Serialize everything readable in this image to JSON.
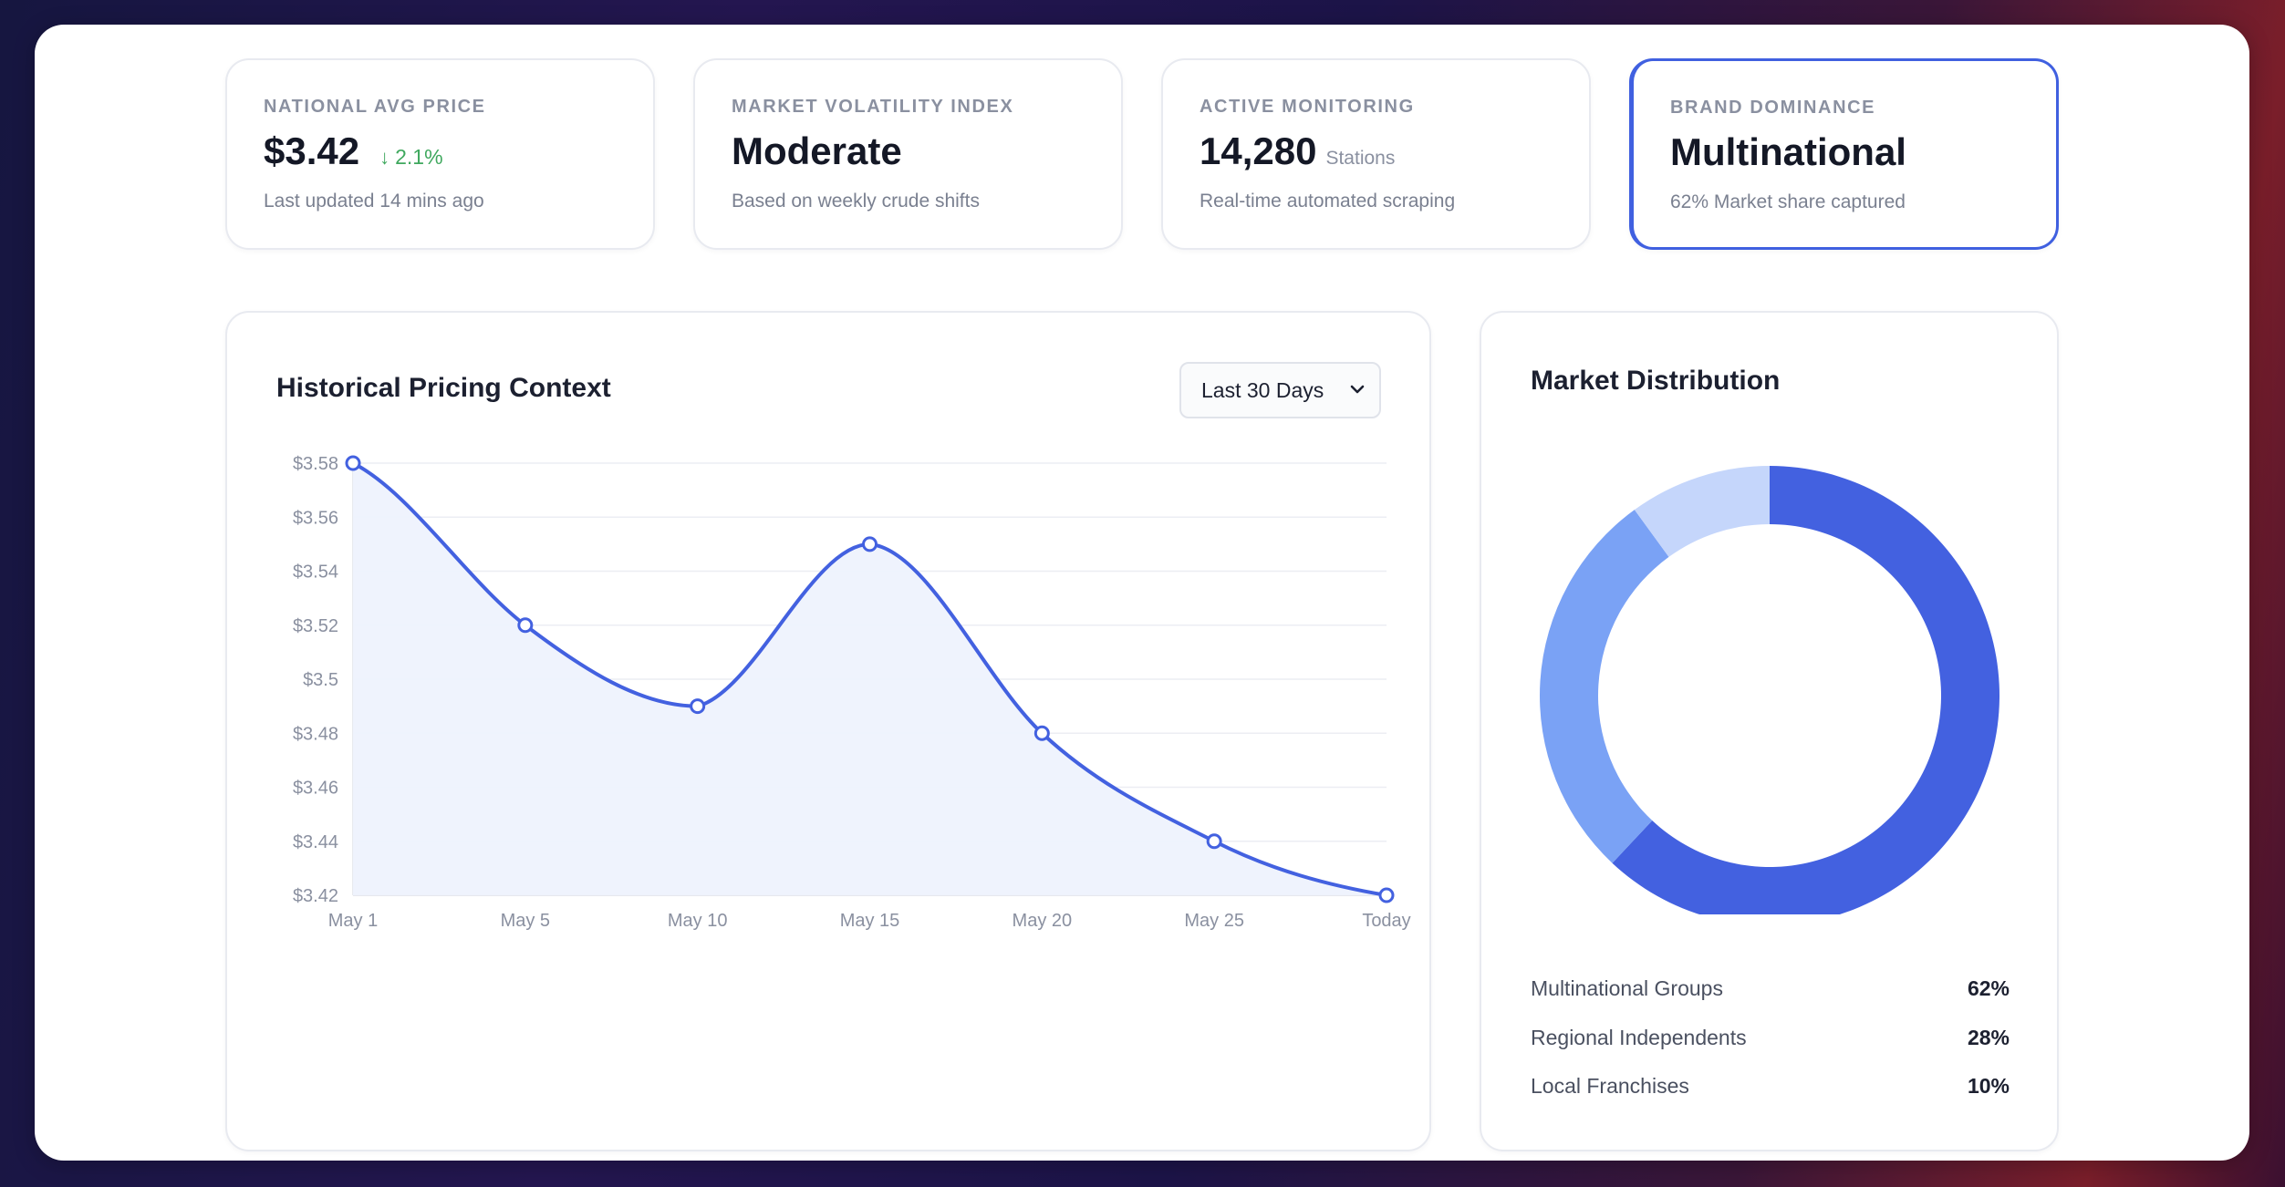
{
  "stats": [
    {
      "label": "NATIONAL AVG PRICE",
      "value": "$3.42",
      "change": "2.1%",
      "change_icon": "arrow-down-icon",
      "sub": "Last updated 14 mins ago"
    },
    {
      "label": "MARKET VOLATILITY INDEX",
      "value": "Moderate",
      "sub": "Based on weekly crude shifts"
    },
    {
      "label": "ACTIVE MONITORING",
      "value": "14,280",
      "unit": "Stations",
      "sub": "Real-time automated scraping"
    },
    {
      "label": "BRAND DOMINANCE",
      "value": "Multinational",
      "sub": "62% Market share captured"
    }
  ],
  "history": {
    "title": "Historical Pricing Context",
    "range_select": {
      "selected": "Last 30 Days"
    }
  },
  "distribution": {
    "title": "Market Distribution",
    "legend": [
      {
        "label": "Multinational Groups",
        "value": "62%"
      },
      {
        "label": "Regional Independents",
        "value": "28%"
      },
      {
        "label": "Local Franchises",
        "value": "10%"
      }
    ]
  },
  "colors": {
    "accent": "#4361e0",
    "donut": [
      "#4361e0",
      "#7aa2f5",
      "#c5d6fb"
    ],
    "line_fill": "#eef2fd",
    "positive": "#3fa85e"
  },
  "chart_data": [
    {
      "type": "line",
      "title": "Historical Pricing Context",
      "x": [
        "May 1",
        "May 5",
        "May 10",
        "May 15",
        "May 20",
        "May 25",
        "Today"
      ],
      "series": [
        {
          "values": [
            3.58,
            3.52,
            3.49,
            3.55,
            3.48,
            3.44,
            3.42
          ]
        }
      ],
      "yticks": [
        "$3.58",
        "$3.56",
        "$3.54",
        "$3.52",
        "$3.5",
        "$3.48",
        "$3.46",
        "$3.44",
        "$3.42"
      ],
      "ylim": [
        3.42,
        3.58
      ],
      "grid": true,
      "fill": true,
      "smooth": true
    },
    {
      "type": "pie",
      "title": "Market Distribution",
      "categories": [
        "Multinational Groups",
        "Regional Independents",
        "Local Franchises"
      ],
      "values": [
        62,
        28,
        10
      ],
      "donut": true
    }
  ]
}
